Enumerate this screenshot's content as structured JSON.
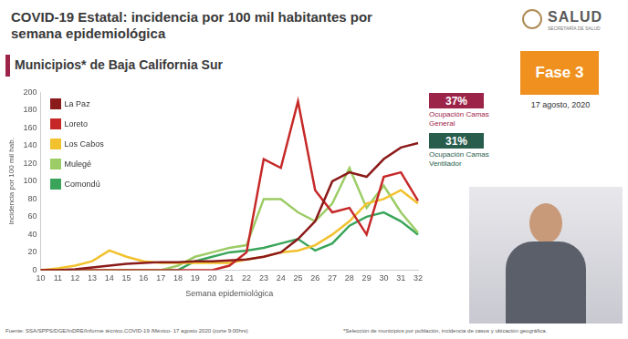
{
  "header": {
    "title_lines": [
      "COVID-19 Estatal: incidencia por 100 mil habitantes por",
      "semana epidemiológica"
    ],
    "logo": {
      "name": "SALUD",
      "subtitle": "SECRETARÍA DE SALUD"
    }
  },
  "phase": {
    "label": "Fase 3",
    "date": "17 agosto, 2020"
  },
  "occupancy": [
    {
      "label": "37%",
      "text": "Ocupación Camas General"
    },
    {
      "label": "31%",
      "text": "Ocupación Camas Ventilador"
    }
  ],
  "chart_data": {
    "type": "line",
    "title": "Municipios* de Baja California Sur",
    "x_label": "Semana epidemiológica",
    "y_label": "Incidencia por 100 mil hab.",
    "categories": [
      "10",
      "11",
      "12",
      "13",
      "14",
      "15",
      "16",
      "17",
      "18",
      "19",
      "20",
      "21",
      "22",
      "23",
      "24",
      "25",
      "26",
      "27",
      "28",
      "29",
      "30",
      "31",
      "32"
    ],
    "series": [
      {
        "name": "La Paz",
        "color": "#8b1a1a",
        "values": [
          0,
          0,
          1,
          3,
          5,
          7,
          8,
          9,
          9,
          10,
          10,
          11,
          12,
          15,
          20,
          35,
          55,
          100,
          110,
          105,
          125,
          138,
          143
        ]
      },
      {
        "name": "Loreto",
        "color": "#c62828",
        "values": [
          0,
          0,
          0,
          0,
          0,
          0,
          0,
          0,
          0,
          0,
          0,
          5,
          20,
          125,
          115,
          190,
          90,
          65,
          70,
          40,
          105,
          110,
          78
        ]
      },
      {
        "name": "Los Cabos",
        "color": "#f2c12e",
        "values": [
          0,
          2,
          5,
          10,
          22,
          15,
          10,
          8,
          8,
          8,
          8,
          8,
          12,
          15,
          20,
          22,
          28,
          40,
          55,
          75,
          80,
          90,
          75
        ]
      },
      {
        "name": "Mulegé",
        "color": "#9ccc65",
        "values": [
          0,
          0,
          0,
          0,
          0,
          0,
          0,
          0,
          5,
          15,
          20,
          25,
          28,
          80,
          80,
          65,
          55,
          75,
          115,
          70,
          95,
          65,
          42
        ]
      },
      {
        "name": "Comondú",
        "color": "#3aa55a",
        "values": [
          0,
          0,
          0,
          0,
          0,
          0,
          0,
          0,
          0,
          10,
          15,
          20,
          22,
          25,
          30,
          35,
          22,
          30,
          50,
          60,
          65,
          55,
          40
        ]
      }
    ],
    "ylim": [
      0,
      200
    ],
    "yticks": [
      0,
      20,
      40,
      60,
      80,
      100,
      120,
      140,
      160,
      180,
      200
    ],
    "grid": false,
    "legend": "upper left",
    "marker": "none"
  },
  "footer": {
    "source": "Fuente: SSA/SPPS/DGE/InDRE/Informe técnico.COVID-19 /México- 17 agosto 2020 (corte 9:00hrs)",
    "note": "*Selección de municipios por población, incidencia de casos y ubicación geográfica."
  }
}
